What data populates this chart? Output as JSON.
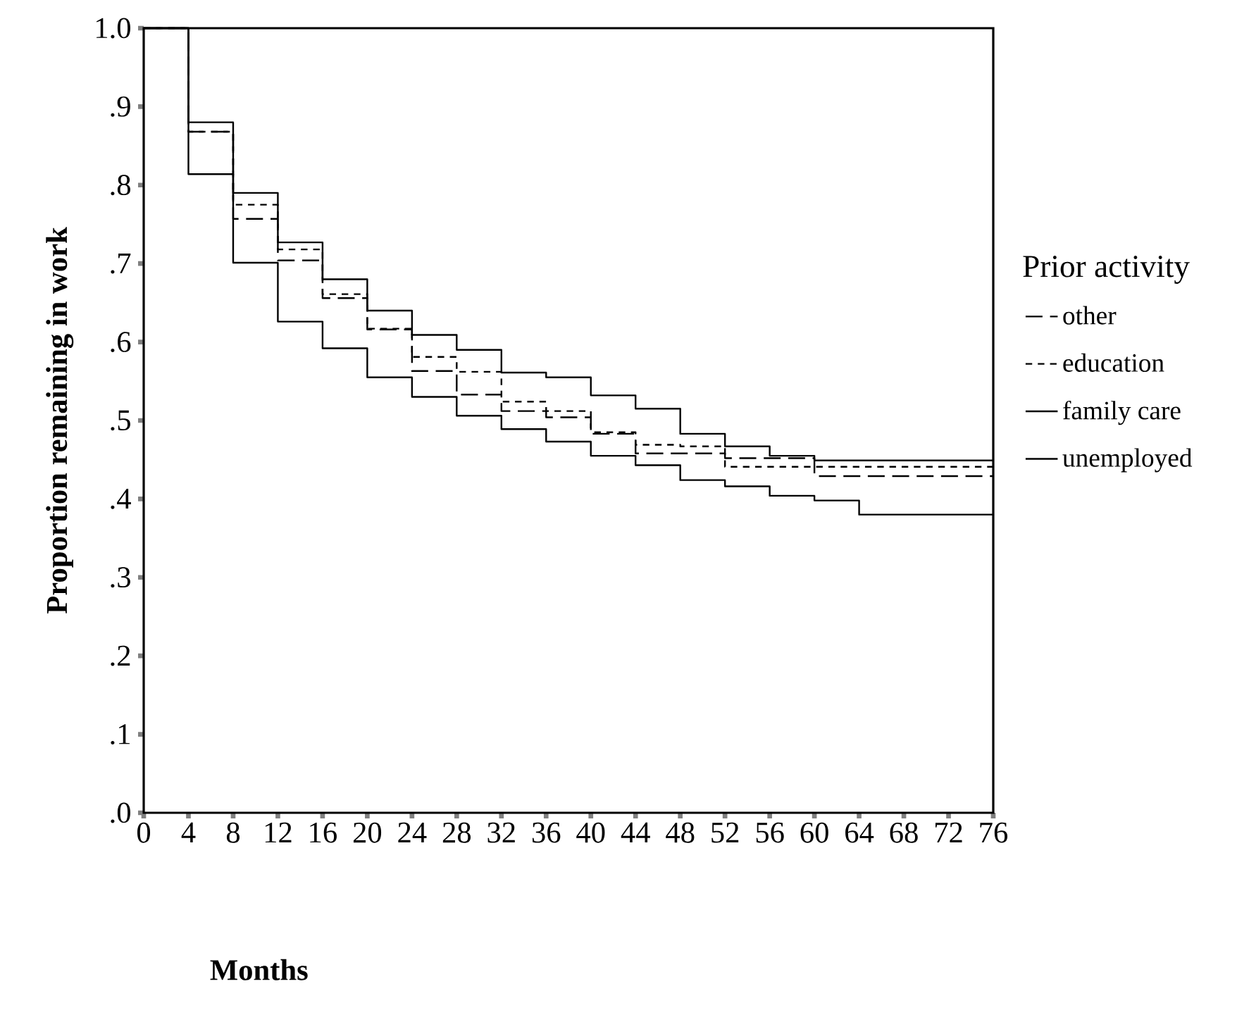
{
  "chart_data": {
    "type": "step",
    "xlabel": "Months",
    "ylabel": "Proportion remaining in work",
    "legend_title": "Prior activity",
    "x": [
      0,
      4,
      8,
      12,
      16,
      20,
      24,
      28,
      32,
      36,
      40,
      44,
      48,
      52,
      56,
      60,
      64,
      68,
      72,
      76
    ],
    "series": [
      {
        "name": "other",
        "color": "#000000",
        "line_style": "dashed",
        "values": [
          1.0,
          0.868,
          0.757,
          0.704,
          0.656,
          0.616,
          0.563,
          0.533,
          0.512,
          0.504,
          0.483,
          0.458,
          0.458,
          0.452,
          0.452,
          0.429,
          0.429,
          0.429,
          0.429,
          0.429
        ]
      },
      {
        "name": "education",
        "color": "#000000",
        "line_style": "dotted",
        "values": [
          1.0,
          0.868,
          0.775,
          0.718,
          0.661,
          0.617,
          0.581,
          0.562,
          0.524,
          0.512,
          0.485,
          0.469,
          0.467,
          0.441,
          0.441,
          0.441,
          0.441,
          0.441,
          0.441,
          0.441
        ]
      },
      {
        "name": "family care",
        "color": "#000000",
        "line_style": "solid",
        "values": [
          1.0,
          0.88,
          0.79,
          0.727,
          0.68,
          0.64,
          0.609,
          0.59,
          0.561,
          0.555,
          0.532,
          0.515,
          0.483,
          0.467,
          0.455,
          0.449,
          0.449,
          0.449,
          0.449,
          0.449
        ]
      },
      {
        "name": "unemployed",
        "color": "#000000",
        "line_style": "solid",
        "values": [
          1.0,
          0.814,
          0.701,
          0.626,
          0.592,
          0.555,
          0.53,
          0.506,
          0.489,
          0.473,
          0.455,
          0.443,
          0.424,
          0.416,
          0.404,
          0.398,
          0.38,
          0.38,
          0.38,
          0.38
        ]
      }
    ],
    "xlim": [
      0,
      76
    ],
    "ylim": [
      0,
      1
    ],
    "xticks": [
      0,
      4,
      8,
      12,
      16,
      20,
      24,
      28,
      32,
      36,
      40,
      44,
      48,
      52,
      56,
      60,
      64,
      68,
      72,
      76
    ],
    "yticks": [
      {
        "value": 0,
        "label": ".0"
      },
      {
        "value": 0.1,
        "label": ".1"
      },
      {
        "value": 0.2,
        "label": ".2"
      },
      {
        "value": 0.3,
        "label": ".3"
      },
      {
        "value": 0.4,
        "label": ".4"
      },
      {
        "value": 0.5,
        "label": ".5"
      },
      {
        "value": 0.6,
        "label": ".6"
      },
      {
        "value": 0.7,
        "label": ".7"
      },
      {
        "value": 0.8,
        "label": ".8"
      },
      {
        "value": 0.9,
        "label": ".9"
      },
      {
        "value": 1.0,
        "label": "1.0"
      }
    ],
    "grid": false,
    "legend": "right",
    "marker": "none"
  }
}
